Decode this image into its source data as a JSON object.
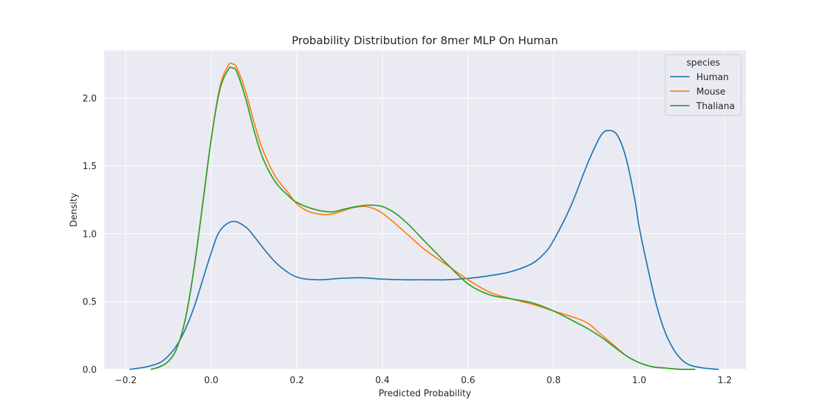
{
  "chart_data": {
    "type": "line",
    "title": "Probability Distribution for 8mer MLP On Human",
    "xlabel": "Predicted Probability",
    "ylabel": "Density",
    "xlim": [
      -0.25,
      1.25
    ],
    "ylim": [
      0,
      2.35
    ],
    "xticks": [
      -0.2,
      0.0,
      0.2,
      0.4,
      0.6,
      0.8,
      1.0,
      1.2
    ],
    "xtick_labels": [
      "−0.2",
      "0.0",
      "0.2",
      "0.4",
      "0.6",
      "0.8",
      "1.0",
      "1.2"
    ],
    "yticks": [
      0.0,
      0.5,
      1.0,
      1.5,
      2.0
    ],
    "ytick_labels": [
      "0.0",
      "0.5",
      "1.0",
      "1.5",
      "2.0"
    ],
    "grid": true,
    "legend": {
      "title": "species",
      "placement": "top-right"
    },
    "series": [
      {
        "name": "Human",
        "color": "#1f77b4",
        "x": [
          -0.19,
          -0.15,
          -0.12,
          -0.1,
          -0.08,
          -0.06,
          -0.04,
          -0.02,
          0.0,
          0.02,
          0.05,
          0.08,
          0.1,
          0.13,
          0.16,
          0.2,
          0.25,
          0.3,
          0.35,
          0.4,
          0.45,
          0.5,
          0.55,
          0.6,
          0.65,
          0.7,
          0.75,
          0.78,
          0.8,
          0.84,
          0.88,
          0.91,
          0.93,
          0.95,
          0.97,
          0.99,
          1.0,
          1.02,
          1.04,
          1.06,
          1.08,
          1.1,
          1.12,
          1.15,
          1.185
        ],
        "y": [
          0.0,
          0.02,
          0.05,
          0.1,
          0.18,
          0.3,
          0.46,
          0.66,
          0.86,
          1.02,
          1.09,
          1.05,
          0.98,
          0.86,
          0.76,
          0.68,
          0.66,
          0.67,
          0.675,
          0.665,
          0.66,
          0.66,
          0.66,
          0.67,
          0.69,
          0.72,
          0.78,
          0.86,
          0.95,
          1.2,
          1.52,
          1.72,
          1.76,
          1.72,
          1.55,
          1.25,
          1.05,
          0.75,
          0.48,
          0.28,
          0.15,
          0.07,
          0.03,
          0.01,
          0.0
        ]
      },
      {
        "name": "Mouse",
        "color": "#ff7f0e",
        "x": [
          -0.14,
          -0.12,
          -0.1,
          -0.08,
          -0.06,
          -0.04,
          -0.02,
          0.0,
          0.02,
          0.04,
          0.05,
          0.06,
          0.08,
          0.1,
          0.12,
          0.15,
          0.18,
          0.2,
          0.23,
          0.27,
          0.3,
          0.33,
          0.36,
          0.39,
          0.42,
          0.46,
          0.5,
          0.55,
          0.6,
          0.65,
          0.7,
          0.75,
          0.8,
          0.85,
          0.88,
          0.91,
          0.94,
          0.97,
          1.0,
          1.03,
          1.06,
          1.1,
          1.13
        ],
        "y": [
          0.0,
          0.02,
          0.06,
          0.16,
          0.38,
          0.75,
          1.22,
          1.7,
          2.08,
          2.24,
          2.25,
          2.22,
          2.05,
          1.82,
          1.62,
          1.42,
          1.3,
          1.22,
          1.16,
          1.14,
          1.16,
          1.19,
          1.2,
          1.17,
          1.1,
          0.99,
          0.88,
          0.77,
          0.66,
          0.57,
          0.52,
          0.48,
          0.43,
          0.38,
          0.34,
          0.26,
          0.18,
          0.1,
          0.05,
          0.02,
          0.01,
          0.0,
          0.0
        ]
      },
      {
        "name": "Thaliana",
        "color": "#2ca02c",
        "x": [
          -0.14,
          -0.12,
          -0.1,
          -0.08,
          -0.06,
          -0.04,
          -0.02,
          0.0,
          0.02,
          0.04,
          0.05,
          0.06,
          0.08,
          0.1,
          0.12,
          0.15,
          0.18,
          0.2,
          0.24,
          0.28,
          0.31,
          0.34,
          0.37,
          0.4,
          0.43,
          0.46,
          0.5,
          0.55,
          0.6,
          0.65,
          0.7,
          0.75,
          0.8,
          0.85,
          0.88,
          0.91,
          0.94,
          0.97,
          1.0,
          1.03,
          1.06,
          1.1,
          1.13
        ],
        "y": [
          0.0,
          0.02,
          0.06,
          0.16,
          0.38,
          0.75,
          1.22,
          1.7,
          2.06,
          2.21,
          2.22,
          2.19,
          2.0,
          1.76,
          1.56,
          1.38,
          1.28,
          1.23,
          1.18,
          1.16,
          1.18,
          1.2,
          1.21,
          1.2,
          1.15,
          1.07,
          0.94,
          0.78,
          0.63,
          0.55,
          0.52,
          0.49,
          0.43,
          0.35,
          0.3,
          0.24,
          0.17,
          0.1,
          0.05,
          0.02,
          0.01,
          0.0,
          0.0
        ]
      }
    ]
  }
}
